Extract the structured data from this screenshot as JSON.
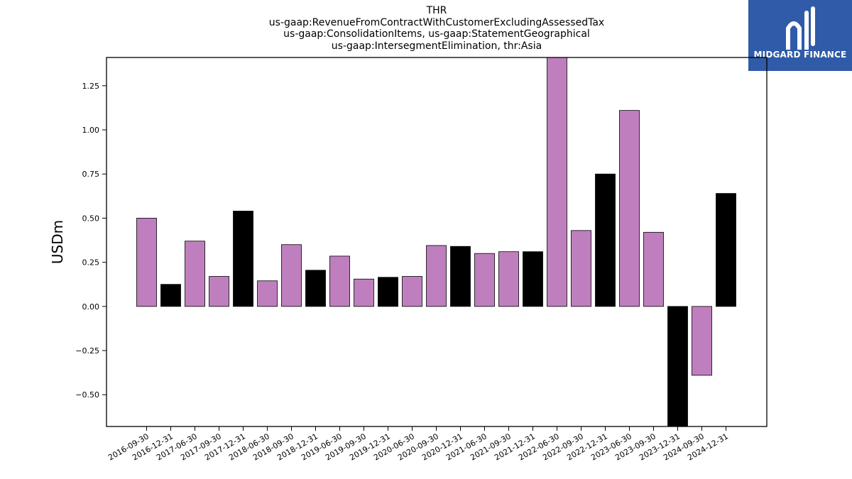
{
  "chart_data": {
    "type": "bar",
    "title_lines": [
      "THR",
      "us-gaap:RevenueFromContractWithCustomerExcludingAssessedTax",
      "us-gaap:ConsolidationItems, us-gaap:StatementGeographical",
      "us-gaap:IntersegmentElimination, thr:Asia"
    ],
    "xlabel": "",
    "ylabel": "USDm",
    "ylim": [
      -0.68,
      1.41
    ],
    "yticks": [
      -0.5,
      -0.25,
      0.0,
      0.25,
      0.5,
      0.75,
      1.0,
      1.25
    ],
    "ytick_labels": [
      "−0.50",
      "−0.25",
      "0.00",
      "0.25",
      "0.50",
      "0.75",
      "1.00",
      "1.25"
    ],
    "grid": false,
    "categories": [
      "2016-09-30",
      "2016-12-31",
      "2017-06-30",
      "2017-09-30",
      "2017-12-31",
      "2018-06-30",
      "2018-09-30",
      "2018-12-31",
      "2019-06-30",
      "2019-09-30",
      "2019-12-31",
      "2020-06-30",
      "2020-09-30",
      "2020-12-31",
      "2021-06-30",
      "2021-09-30",
      "2021-12-31",
      "2022-06-30",
      "2022-09-30",
      "2022-12-31",
      "2023-06-30",
      "2023-09-30",
      "2023-12-31",
      "2024-09-30",
      "2024-12-31"
    ],
    "values": [
      0.5,
      0.125,
      0.37,
      0.17,
      0.54,
      0.145,
      0.35,
      0.205,
      0.285,
      0.155,
      0.165,
      0.17,
      0.345,
      0.34,
      0.3,
      0.31,
      0.31,
      1.42,
      0.43,
      0.75,
      1.11,
      0.42,
      -0.7,
      -0.39,
      0.64
    ],
    "colors": {
      "quarter": "#bf7fbf",
      "year_end": "#000000",
      "edge": "#000000"
    }
  },
  "logo": {
    "text": "MIDGARD FINANCE",
    "background": "#2f5ba8"
  }
}
